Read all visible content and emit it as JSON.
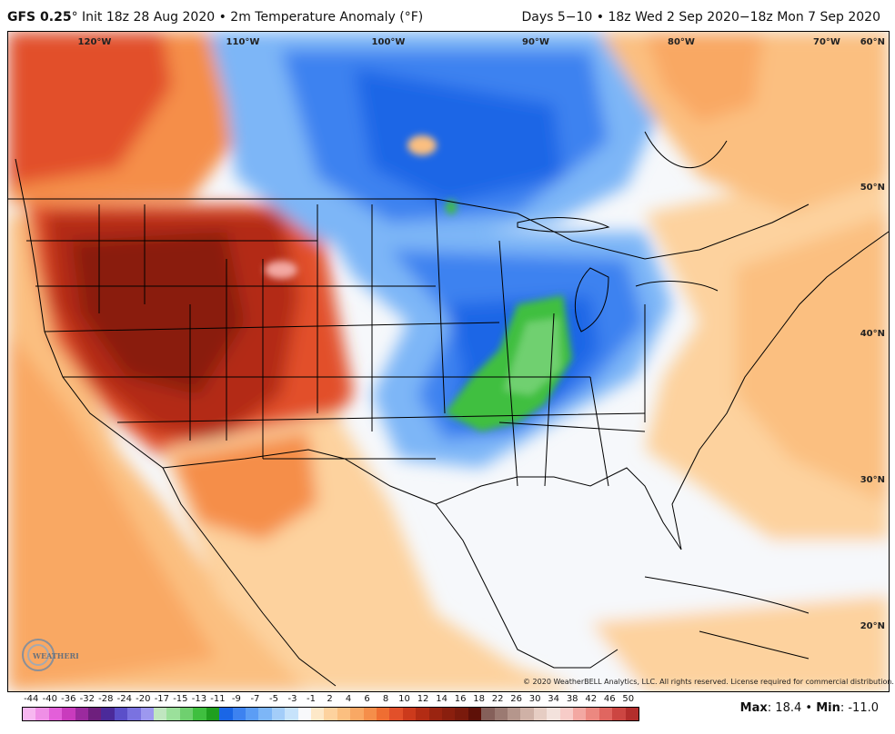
{
  "header": {
    "model": "GFS 0.25",
    "degree": "°",
    "title_rest": " Init 18z 28 Aug 2020 • 2m Temperature Anomaly (°F)",
    "valid": "Days 5−10 • 18z Wed 2 Sep 2020−18z Mon 7 Sep 2020"
  },
  "lon_labels": [
    "120°W",
    "110°W",
    "100°W",
    "90°W",
    "80°W",
    "70°W"
  ],
  "lat_labels": [
    "60°N",
    "50°N",
    "40°N",
    "30°N",
    "20°N"
  ],
  "copyright": "© 2020 WeatherBELL Analytics, LLC. All rights reserved. License required for commercial distribution.",
  "logo_text": "WEATHERBELL",
  "colorbar": {
    "ticks": [
      "-44",
      "-40",
      "-36",
      "-32",
      "-28",
      "-24",
      "-20",
      "-17",
      "-15",
      "-13",
      "-11",
      "-9",
      "-7",
      "-5",
      "-3",
      "-1",
      "2",
      "4",
      "6",
      "8",
      "10",
      "12",
      "14",
      "16",
      "18",
      "22",
      "26",
      "30",
      "34",
      "38",
      "42",
      "46",
      "50"
    ],
    "colors": [
      "#f7b7f0",
      "#ef8fe6",
      "#e35fd9",
      "#c93bbd",
      "#9b2a9e",
      "#6e1f7d",
      "#4b2a9a",
      "#5b4fc9",
      "#7a72e0",
      "#9d98ef",
      "#c0e6c0",
      "#9be09b",
      "#6fd06f",
      "#3fbf3f",
      "#1f9f1f",
      "#1a66e6",
      "#3d82f0",
      "#5b9df5",
      "#7db6f7",
      "#a3cdf9",
      "#c7e3fb",
      "#f8f9fb",
      "#fde8c8",
      "#fdd29e",
      "#fbbf80",
      "#f9a864",
      "#f58e4a",
      "#ef6e32",
      "#e2502a",
      "#cc3a1c",
      "#b32c14",
      "#9a2410",
      "#8a1f0e",
      "#7a1a0c",
      "#5e1008",
      "#85605a",
      "#9b7a72",
      "#b5968c",
      "#cfb1a6",
      "#e6cdc3",
      "#f3e2dc",
      "#f7ccc8",
      "#f3a8a2",
      "#ec8880",
      "#e06660",
      "#cc4642",
      "#b32e2c"
    ]
  },
  "stats": {
    "max_label": "Max",
    "max_value": ": 18.4",
    "sep": " • ",
    "min_label": "Min",
    "min_value": ": -11.0"
  }
}
